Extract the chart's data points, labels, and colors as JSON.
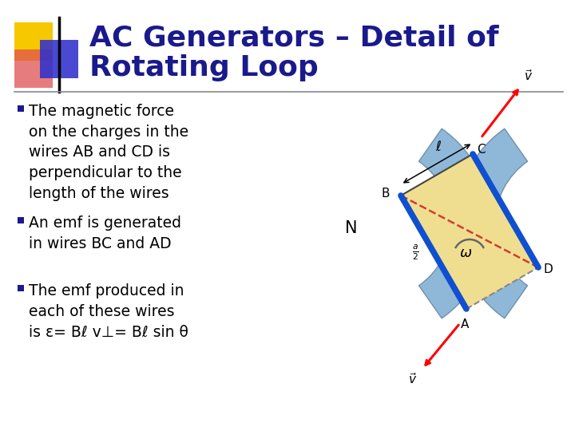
{
  "title_line1": "AC Generators – Detail of",
  "title_line2": "Rotating Loop",
  "title_color": "#1a1a8c",
  "title_fontsize": 26,
  "bg_color": "#ffffff",
  "bullet_color": "#1a1a8c",
  "bullet_fontsize": 13.5,
  "bullets": [
    "The magnetic force\non the charges in the\nwires AB and CD is\nperpendicular to the\nlength of the wires",
    "An emf is generated\nin wires BC and AD",
    "The emf produced in\neach of these wires\nis ε= Bℓ v⊥= Bℓ sin θ"
  ],
  "logo_yellow": "#f5c800",
  "logo_red": "#e05050",
  "logo_blue": "#3030cc",
  "separator_color": "#888899"
}
